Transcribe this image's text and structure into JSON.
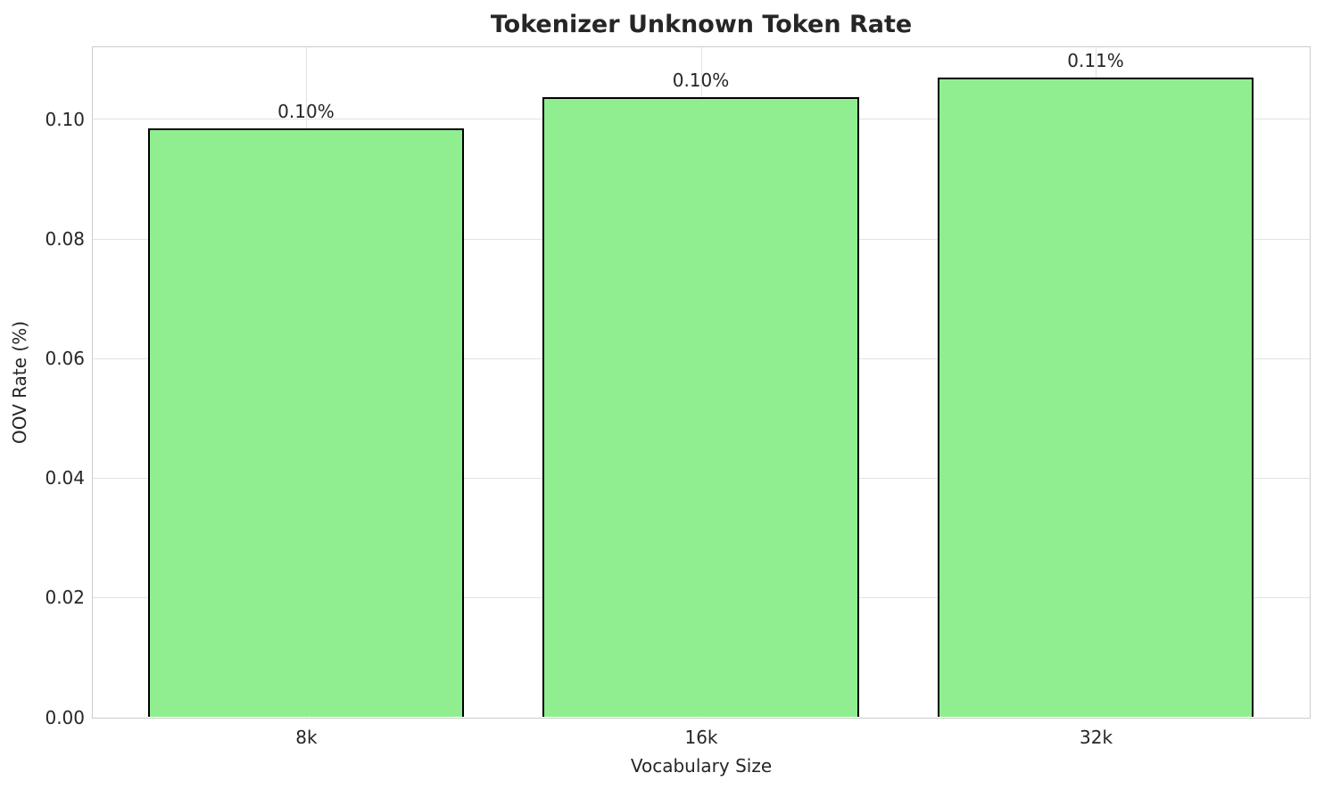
{
  "chart_data": {
    "type": "bar",
    "title": "Tokenizer Unknown Token Rate",
    "xlabel": "Vocabulary Size",
    "ylabel": "OOV Rate (%)",
    "categories": [
      "8k",
      "16k",
      "32k"
    ],
    "values": [
      0.0985,
      0.1036,
      0.107
    ],
    "bar_value_labels": [
      "0.10%",
      "0.10%",
      "0.11%"
    ],
    "yticks": [
      "0.00",
      "0.02",
      "0.04",
      "0.06",
      "0.08",
      "0.10"
    ],
    "ylim": [
      0,
      0.112
    ],
    "grid": true,
    "legend": false,
    "colors": {
      "bar_fill": "#90EE90",
      "bar_edge": "#000000",
      "grid_line": "#e2e2e2",
      "spine": "#cccccc",
      "text": "#262626",
      "background": "#ffffff"
    }
  }
}
